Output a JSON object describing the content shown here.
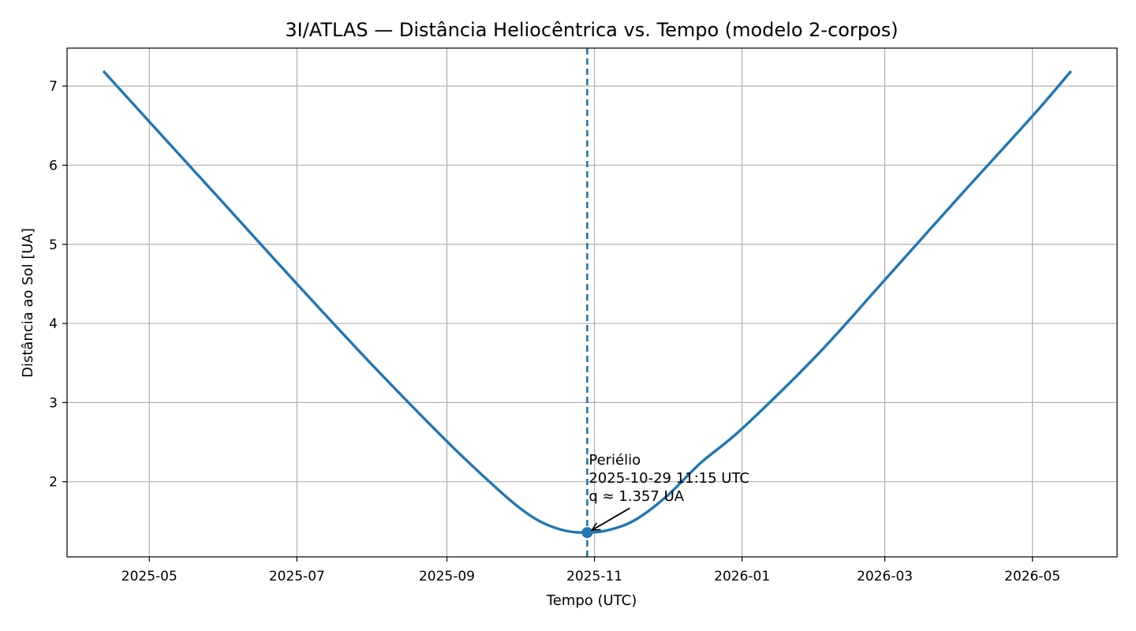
{
  "chart_data": {
    "type": "line",
    "title": "3I/ATLAS — Distância Heliocêntrica vs. Tempo (modelo 2-corpos)",
    "xlabel": "Tempo (UTC)",
    "ylabel": "Distância ao Sol [UA]",
    "x_ticks": [
      "2025-05",
      "2025-07",
      "2025-09",
      "2025-11",
      "2026-01",
      "2026-03",
      "2026-05"
    ],
    "y_ticks": [
      2,
      3,
      4,
      5,
      6,
      7
    ],
    "xlim": [
      "2025-03-28",
      "2026-06-05"
    ],
    "ylim": [
      1.05,
      7.48
    ],
    "grid": true,
    "series": [
      {
        "color": "#1f77b4",
        "points": [
          [
            "2025-04-12",
            7.19
          ],
          [
            "2025-05-01",
            6.55
          ],
          [
            "2025-06-01",
            5.51
          ],
          [
            "2025-07-01",
            4.5
          ],
          [
            "2025-08-01",
            3.48
          ],
          [
            "2025-09-01",
            2.51
          ],
          [
            "2025-09-20",
            1.96
          ],
          [
            "2025-10-01",
            1.67
          ],
          [
            "2025-10-10",
            1.49
          ],
          [
            "2025-10-20",
            1.38
          ],
          [
            "2025-10-29",
            1.357
          ],
          [
            "2025-11-07",
            1.39
          ],
          [
            "2025-11-18",
            1.52
          ],
          [
            "2025-12-01",
            1.82
          ],
          [
            "2025-12-15",
            2.24
          ],
          [
            "2026-01-01",
            2.67
          ],
          [
            "2026-02-01",
            3.6
          ],
          [
            "2026-03-01",
            4.55
          ],
          [
            "2026-04-01",
            5.61
          ],
          [
            "2026-05-01",
            6.62
          ],
          [
            "2026-05-17",
            7.19
          ]
        ]
      }
    ],
    "perihelion": {
      "date": "2025-10-29",
      "value": 1.357,
      "line_style": "dashed",
      "annotation_lines": [
        "Periélio",
        "2025-10-29 11:15 UTC",
        "q ≈ 1.357 UA"
      ]
    }
  }
}
